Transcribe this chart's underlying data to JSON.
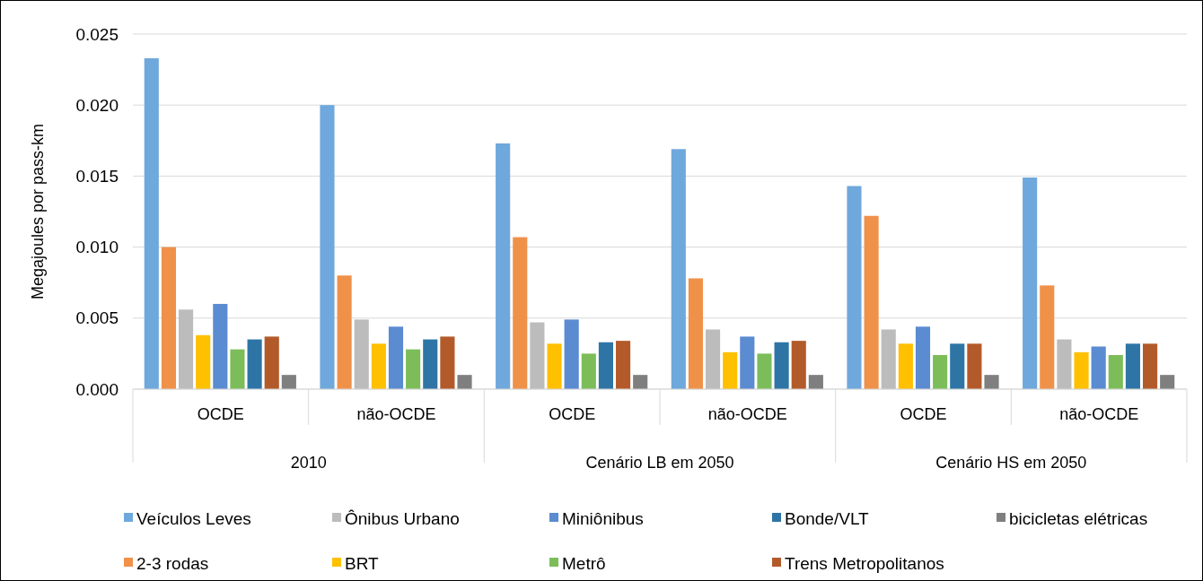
{
  "chart_data": {
    "type": "bar",
    "ylabel": "Megajoules por pass-km",
    "categories": [
      "OCDE",
      "não-OCDE",
      "OCDE",
      "não-OCDE",
      "OCDE",
      "não-OCDE"
    ],
    "annotations": [
      "2010",
      "Cenário LB em 2050",
      "Cenário HS em 2050"
    ],
    "series": [
      {
        "name": "Veículos Leves",
        "color": "#6fa8dc",
        "values": [
          0.0233,
          0.02,
          0.0173,
          0.0169,
          0.0143,
          0.0149
        ]
      },
      {
        "name": "2-3 rodas",
        "color": "#f0914a",
        "values": [
          0.01,
          0.008,
          0.0107,
          0.0078,
          0.0122,
          0.0073
        ]
      },
      {
        "name": "Ônibus Urbano",
        "color": "#bcbcbc",
        "values": [
          0.0056,
          0.0049,
          0.0047,
          0.0042,
          0.0042,
          0.0035
        ]
      },
      {
        "name": "BRT",
        "color": "#ffc000",
        "values": [
          0.0038,
          0.0032,
          0.0032,
          0.0026,
          0.0032,
          0.0026
        ]
      },
      {
        "name": "Miniônibus",
        "color": "#5b8bd0",
        "values": [
          0.006,
          0.0044,
          0.0049,
          0.0037,
          0.0044,
          0.003
        ]
      },
      {
        "name": "Metrô",
        "color": "#7cbd5a",
        "values": [
          0.0028,
          0.0028,
          0.0025,
          0.0025,
          0.0024,
          0.0024
        ]
      },
      {
        "name": "Bonde/VLT",
        "color": "#2e75a6",
        "values": [
          0.0035,
          0.0035,
          0.0033,
          0.0033,
          0.0032,
          0.0032
        ]
      },
      {
        "name": "Trens Metropolitanos",
        "color": "#b35a2a",
        "values": [
          0.0037,
          0.0037,
          0.0034,
          0.0034,
          0.0032,
          0.0032
        ]
      },
      {
        "name": "bicicletas elétricas",
        "color": "#7f7f7f",
        "values": [
          0.001,
          0.001,
          0.001,
          0.001,
          0.001,
          0.001
        ]
      }
    ],
    "ylim": [
      0,
      0.025
    ],
    "yticks": [
      {
        "value": 0,
        "label": "0.000"
      },
      0.005,
      {
        "value": 0.01,
        "label": "0.010"
      },
      0.015,
      {
        "value": 0.02,
        "label": "0.020"
      },
      0.025
    ],
    "grid": "y",
    "legend": "bottom"
  }
}
